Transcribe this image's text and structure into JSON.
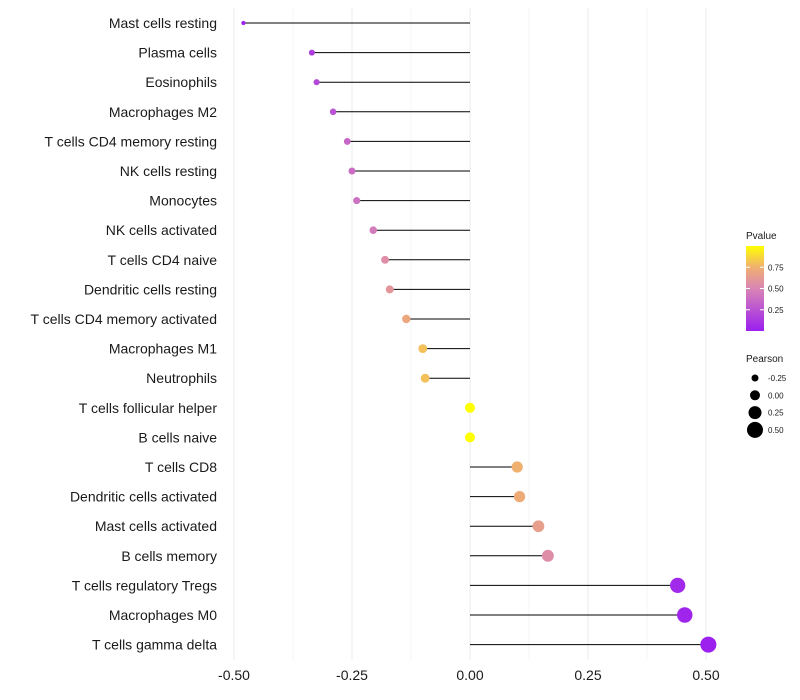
{
  "chart_data": {
    "type": "lollipop",
    "title": "",
    "xlabel": "",
    "ylabel": "",
    "xlim": [
      -0.52,
      0.53
    ],
    "x_ticks": [
      -0.5,
      -0.25,
      0.0,
      0.25,
      0.5
    ],
    "x_tick_labels": [
      "-0.50",
      "-0.25",
      "0.00",
      "0.25",
      "0.50"
    ],
    "grid": true,
    "categories": [
      "Mast cells resting",
      "Plasma cells",
      "Eosinophils",
      "Macrophages M2",
      "T cells CD4 memory resting",
      "NK cells resting",
      "Monocytes",
      "NK cells activated",
      "T cells CD4 naive",
      "Dendritic cells resting",
      "T cells CD4 memory activated",
      "Macrophages M1",
      "Neutrophils",
      "T cells follicular helper",
      "B cells naive",
      "T cells CD8",
      "Dendritic cells activated",
      "Mast cells activated",
      "B cells memory",
      "T cells regulatory  Tregs ",
      "Macrophages M0",
      "T cells gamma delta"
    ],
    "values": [
      -0.48,
      -0.335,
      -0.325,
      -0.29,
      -0.26,
      -0.25,
      -0.24,
      -0.205,
      -0.18,
      -0.17,
      -0.135,
      -0.1,
      -0.095,
      0.0,
      0.0,
      0.1,
      0.105,
      0.145,
      0.165,
      0.44,
      0.455,
      0.505
    ],
    "pvalues": [
      0.02,
      0.15,
      0.2,
      0.25,
      0.35,
      0.38,
      0.4,
      0.45,
      0.55,
      0.6,
      0.7,
      0.8,
      0.8,
      1.0,
      1.0,
      0.75,
      0.72,
      0.65,
      0.55,
      0.05,
      0.03,
      0.01
    ],
    "legends": {
      "color": {
        "title": "Pvalue",
        "ticks": [
          0.25,
          0.5,
          0.75
        ],
        "tick_labels": [
          "0.25",
          "0.50",
          "0.75"
        ],
        "range": [
          0.0,
          1.0
        ],
        "low_color": "#9b1ff0",
        "high_color": "#ffff00"
      },
      "size": {
        "title": "Pearson",
        "values": [
          -0.25,
          0.0,
          0.25,
          0.5
        ],
        "labels": [
          "-0.25",
          "0.00",
          "0.25",
          "0.50"
        ]
      }
    },
    "colors": {
      "stem": "#000000",
      "grid": "#ebebeb"
    }
  }
}
